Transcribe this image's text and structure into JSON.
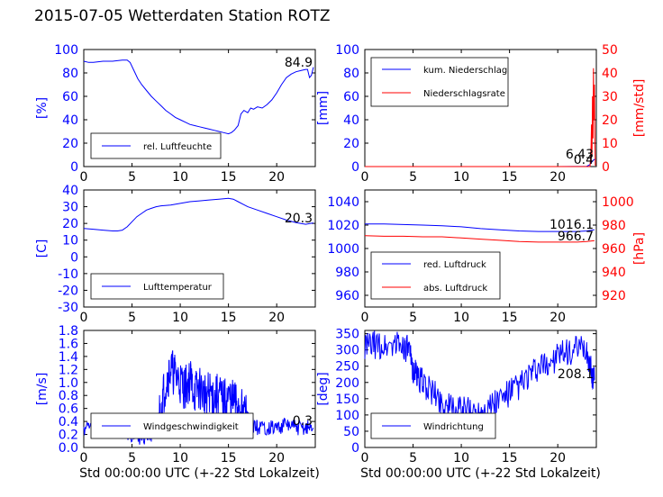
{
  "figure": {
    "title": "2015-07-05 Wetterdaten Station ROTZ"
  },
  "colors": {
    "primary": "#0000ff",
    "secondary": "#ff0000",
    "grid": "#000000"
  },
  "chart_data": [
    {
      "id": "humidity",
      "type": "line",
      "ylabel": "[%]",
      "xlim": [
        0,
        24
      ],
      "ylim": [
        0,
        100
      ],
      "yticks": [
        0,
        20,
        40,
        60,
        80,
        100
      ],
      "xticks": [
        0,
        5,
        10,
        15,
        20
      ],
      "current_value": "84.9",
      "legend": "lower-left",
      "series": [
        {
          "name": "rel. Luftfeuchte",
          "color": "#0000ff",
          "x": [
            0,
            0.5,
            1,
            2,
            3,
            4,
            4.5,
            4.8,
            5.2,
            5.6,
            6,
            6.5,
            7,
            7.5,
            8,
            8.5,
            9,
            9.5,
            10,
            10.5,
            11,
            11.5,
            12,
            12.5,
            13,
            13.5,
            14,
            14.5,
            15,
            15.3,
            15.6,
            16,
            16.3,
            16.6,
            17,
            17.3,
            17.6,
            18,
            18.5,
            19,
            19.5,
            20,
            20.5,
            21,
            21.5,
            22,
            22.5,
            23,
            23.2,
            23.4,
            23.6,
            23.8
          ],
          "y": [
            90,
            89,
            89,
            90,
            90,
            91,
            91,
            89,
            82,
            75,
            70,
            65,
            60,
            56,
            52,
            48,
            45,
            42,
            40,
            38,
            36,
            35,
            34,
            33,
            32,
            31,
            30,
            29,
            28,
            29,
            31,
            35,
            45,
            48,
            46,
            50,
            49,
            51,
            50,
            53,
            57,
            63,
            70,
            76,
            79,
            81,
            82,
            83,
            83,
            76,
            78,
            84.9
          ]
        }
      ]
    },
    {
      "id": "precipitation",
      "type": "line",
      "ylabel": "[mm]",
      "ylabel_right": "[mm/std]",
      "xlim": [
        0,
        24
      ],
      "ylim": [
        0,
        100
      ],
      "ylim_right": [
        0,
        50
      ],
      "yticks": [
        0,
        20,
        40,
        60,
        80,
        100
      ],
      "yticks_right": [
        0,
        10,
        20,
        30,
        40,
        50
      ],
      "xticks": [
        0,
        5,
        10,
        15,
        20
      ],
      "current_value": "6.43",
      "current_value_2": "0.4",
      "legend": "top-left",
      "series": [
        {
          "name": "kum. Niederschlag",
          "axis": "left",
          "color": "#0000ff",
          "x": [
            0,
            5,
            10,
            15,
            20,
            23,
            23.3,
            23.5,
            23.7,
            23.9
          ],
          "y": [
            0,
            0,
            0,
            0,
            0,
            0.2,
            1.5,
            3.5,
            5.5,
            6.43
          ]
        },
        {
          "name": "Niederschlagsrate",
          "axis": "right",
          "color": "#ff0000",
          "x": [
            0,
            5,
            10,
            15,
            20,
            23,
            23.35,
            23.45,
            23.5,
            23.55,
            23.6,
            23.65,
            23.7,
            23.75,
            23.8,
            23.85,
            23.9
          ],
          "y": [
            0,
            0,
            0,
            0,
            0,
            0,
            0,
            8,
            18,
            5,
            30,
            12,
            42,
            20,
            35,
            10,
            0.4
          ]
        }
      ]
    },
    {
      "id": "temperature",
      "type": "line",
      "ylabel": "[C]",
      "xlim": [
        0,
        24
      ],
      "ylim": [
        -30,
        40
      ],
      "yticks": [
        -30,
        -20,
        -10,
        0,
        10,
        20,
        30,
        40
      ],
      "xticks": [
        0,
        5,
        10,
        15,
        20
      ],
      "current_value": "20.3",
      "legend": "lower-left",
      "series": [
        {
          "name": "Lufttemperatur",
          "color": "#0000ff",
          "x": [
            0,
            1,
            2,
            3,
            3.5,
            4,
            4.5,
            5,
            5.5,
            6,
            6.5,
            7,
            7.5,
            8,
            9,
            10,
            11,
            12,
            13,
            14,
            15,
            15.5,
            16,
            16.5,
            17,
            18,
            19,
            20,
            21,
            22,
            23,
            23.5,
            23.8
          ],
          "y": [
            17,
            16.5,
            16,
            15.5,
            15.5,
            16,
            18,
            21,
            24,
            26,
            28,
            29,
            30,
            30.5,
            31,
            32,
            33,
            33.5,
            34,
            34.5,
            35,
            34.5,
            33,
            31.5,
            30,
            28,
            26,
            24,
            22,
            20.5,
            19.5,
            20,
            20.3
          ]
        }
      ]
    },
    {
      "id": "pressure",
      "type": "line",
      "ylabel_right": "[hPa]",
      "xlim": [
        0,
        24
      ],
      "ylim": [
        950,
        1050
      ],
      "ylim_right": [
        910,
        1010
      ],
      "yticks": [
        960,
        980,
        1000,
        1020,
        1040
      ],
      "yticks_right": [
        920,
        940,
        960,
        980,
        1000
      ],
      "xticks": [
        0,
        5,
        10,
        15,
        20
      ],
      "current_value": "1016.1",
      "current_value_2": "966.7",
      "legend": "lower-left",
      "series": [
        {
          "name": "red. Luftdruck",
          "color": "#0000ff",
          "x": [
            0,
            2,
            4,
            6,
            8,
            10,
            12,
            14,
            16,
            18,
            20,
            22,
            23,
            23.8
          ],
          "y": [
            1021,
            1021,
            1020.5,
            1020,
            1019.5,
            1018.5,
            1017,
            1016,
            1015,
            1014.5,
            1014.5,
            1014.5,
            1015,
            1016.1
          ]
        },
        {
          "name": "abs. Luftdruck",
          "color": "#ff0000",
          "x": [
            0,
            2,
            4,
            6,
            8,
            10,
            12,
            14,
            16,
            18,
            20,
            22,
            23,
            23.8
          ],
          "y": [
            1011,
            1010.5,
            1010.5,
            1010,
            1010,
            1009,
            1008,
            1007,
            1006,
            1005.5,
            1005.5,
            1005.5,
            1006,
            1006.7
          ]
        }
      ]
    },
    {
      "id": "windspeed",
      "type": "line",
      "ylabel": "[m/s]",
      "xlabel": "Std 00:00:00 UTC (+-22 Std Lokalzeit)",
      "xlim": [
        0,
        24
      ],
      "ylim": [
        0,
        1.8
      ],
      "yticks": [
        0.0,
        0.2,
        0.4,
        0.6,
        0.8,
        1.0,
        1.2,
        1.4,
        1.6,
        1.8
      ],
      "ytick_labels": [
        "0.0",
        "0.2",
        "0.4",
        "0.6",
        "0.8",
        "1.0",
        "1.2",
        "1.4",
        "1.6",
        "1.8"
      ],
      "xticks": [
        0,
        5,
        10,
        15,
        20
      ],
      "current_value": "0.3",
      "legend": "lower-left",
      "series": [
        {
          "name": "Windgeschwindigkeit",
          "color": "#0000ff",
          "x": [
            0,
            1,
            2,
            3,
            4,
            5,
            6,
            7,
            7.5,
            8,
            8.5,
            9,
            9.5,
            10,
            10.5,
            11,
            11.5,
            12,
            12.5,
            13,
            13.5,
            14,
            14.5,
            15,
            15.5,
            16,
            16.5,
            17,
            17.5,
            18,
            19,
            20,
            21,
            22,
            23,
            23.8
          ],
          "y": [
            0.3,
            0.35,
            0.3,
            0.3,
            0.25,
            0.2,
            0.15,
            0.2,
            0.35,
            0.6,
            1.0,
            1.2,
            1.1,
            1.0,
            0.9,
            1.05,
            0.85,
            0.9,
            0.8,
            0.85,
            0.75,
            0.8,
            0.7,
            0.75,
            0.7,
            0.65,
            0.6,
            0.45,
            0.35,
            0.3,
            0.3,
            0.3,
            0.35,
            0.3,
            0.3,
            0.3
          ]
        }
      ]
    },
    {
      "id": "winddirection",
      "type": "line",
      "ylabel": "[deg]",
      "xlabel": "Std 00:00:00 UTC (+-22 Std Lokalzeit)",
      "xlim": [
        0,
        24
      ],
      "ylim": [
        0,
        360
      ],
      "yticks": [
        0,
        50,
        100,
        150,
        200,
        250,
        300,
        350
      ],
      "xticks": [
        0,
        5,
        10,
        15,
        20
      ],
      "current_value": "208.1",
      "legend": "lower-left",
      "series": [
        {
          "name": "Windrichtung",
          "color": "#0000ff",
          "x": [
            0,
            1,
            2,
            3,
            4,
            4.5,
            5,
            5.5,
            6,
            7,
            8,
            9,
            10,
            11,
            12,
            13,
            14,
            15,
            16,
            17,
            18,
            19,
            20,
            21,
            22,
            23,
            23.5,
            23.8
          ],
          "y": [
            310,
            315,
            310,
            320,
            315,
            300,
            240,
            220,
            200,
            170,
            140,
            120,
            115,
            110,
            120,
            130,
            150,
            170,
            190,
            220,
            240,
            260,
            280,
            290,
            300,
            300,
            230,
            208.1
          ]
        }
      ]
    }
  ]
}
